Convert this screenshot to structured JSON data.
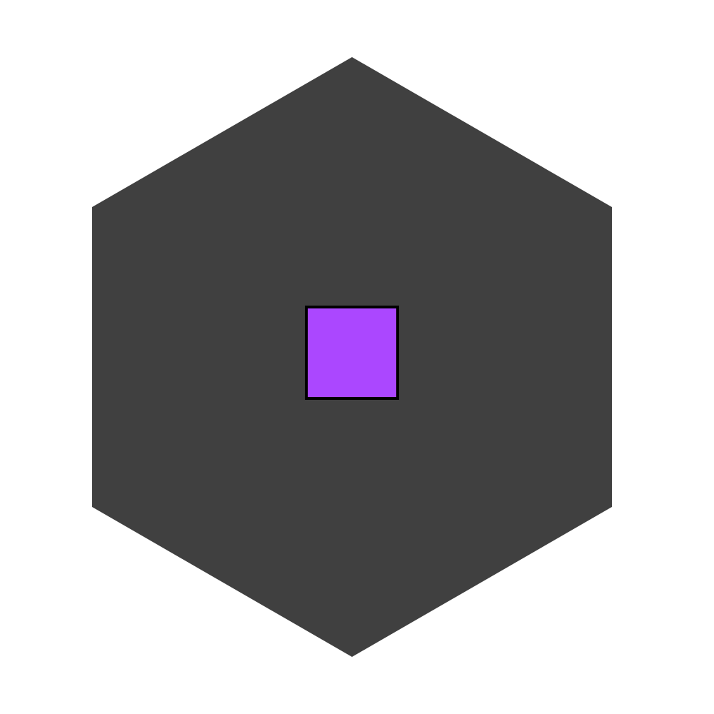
{
  "background_color": "#ffffff",
  "shapes": {
    "hexagon": {
      "shape": "hexagon",
      "fill": "#404040"
    },
    "square": {
      "shape": "square",
      "fill": "#ab47ff",
      "stroke": "#000000"
    }
  }
}
